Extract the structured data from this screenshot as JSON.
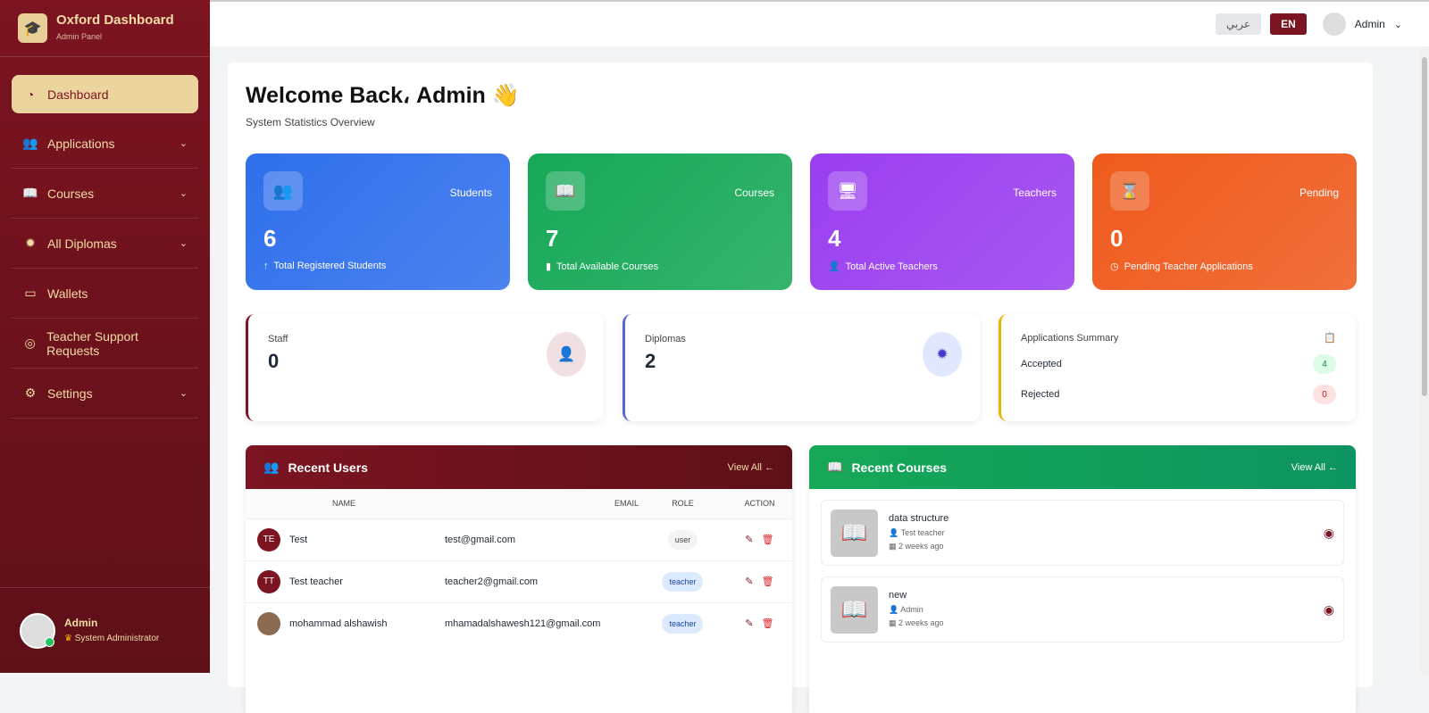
{
  "brand": {
    "title": "Oxford Dashboard",
    "subtitle": "Admin Panel"
  },
  "sidebar": {
    "items": [
      {
        "label": "Dashboard",
        "icon": "gauge-icon",
        "active": true
      },
      {
        "label": "Applications",
        "icon": "users-icon",
        "chevron": true
      },
      {
        "label": "Courses",
        "icon": "book-icon",
        "chevron": true
      },
      {
        "label": "All Diplomas",
        "icon": "certificate-icon",
        "chevron": true
      },
      {
        "label": "Wallets",
        "icon": "wallet-icon"
      },
      {
        "label": "Teacher Support Requests",
        "icon": "lifering-icon"
      },
      {
        "label": "Settings",
        "icon": "gear-icon",
        "chevron": true
      }
    ],
    "user": {
      "name": "Admin",
      "role": "System Administrator"
    }
  },
  "topbar": {
    "arabic": "عربي",
    "english": "EN",
    "user": "Admin"
  },
  "welcome": {
    "title": "Welcome Back، Admin 👋",
    "subtitle": "System Statistics Overview"
  },
  "stats": [
    {
      "label": "Students",
      "value": "6",
      "desc": "Total Registered Students",
      "color": "#2f6fec"
    },
    {
      "label": "Courses",
      "value": "7",
      "desc": "Total Available Courses",
      "color": "#16a857"
    },
    {
      "label": "Teachers",
      "value": "4",
      "desc": "Total Active Teachers",
      "color": "#9a3ef0"
    },
    {
      "label": "Pending",
      "value": "0",
      "desc": "Pending Teacher Applications",
      "color": "#ef5a1c"
    }
  ],
  "mini": {
    "staff": {
      "label": "Staff",
      "value": "0"
    },
    "diplomas": {
      "label": "Diplomas",
      "value": "2"
    },
    "applications": {
      "title": "Applications Summary",
      "accepted_label": "Accepted",
      "accepted": "4",
      "rejected_label": "Rejected",
      "rejected": "0"
    }
  },
  "recent_users": {
    "title": "Recent Users",
    "view_all": "View All ←",
    "columns": [
      "NAME",
      "EMAIL",
      "ROLE",
      "ACTION"
    ],
    "rows": [
      {
        "initials": "TE",
        "name": "Test",
        "email": "test@gmail.com",
        "role": "user"
      },
      {
        "initials": "TT",
        "name": "Test teacher",
        "email": "teacher2@gmail.com",
        "role": "teacher"
      },
      {
        "initials": "",
        "name": "mohammad alshawish",
        "email": "mhamadalshawesh121@gmail.com",
        "role": "teacher"
      }
    ]
  },
  "recent_courses": {
    "title": "Recent Courses",
    "view_all": "View All ←",
    "items": [
      {
        "name": "data structure",
        "teacher": "Test teacher",
        "time": "2 weeks ago"
      },
      {
        "name": "new",
        "teacher": "Admin",
        "time": "2 weeks ago"
      }
    ]
  }
}
